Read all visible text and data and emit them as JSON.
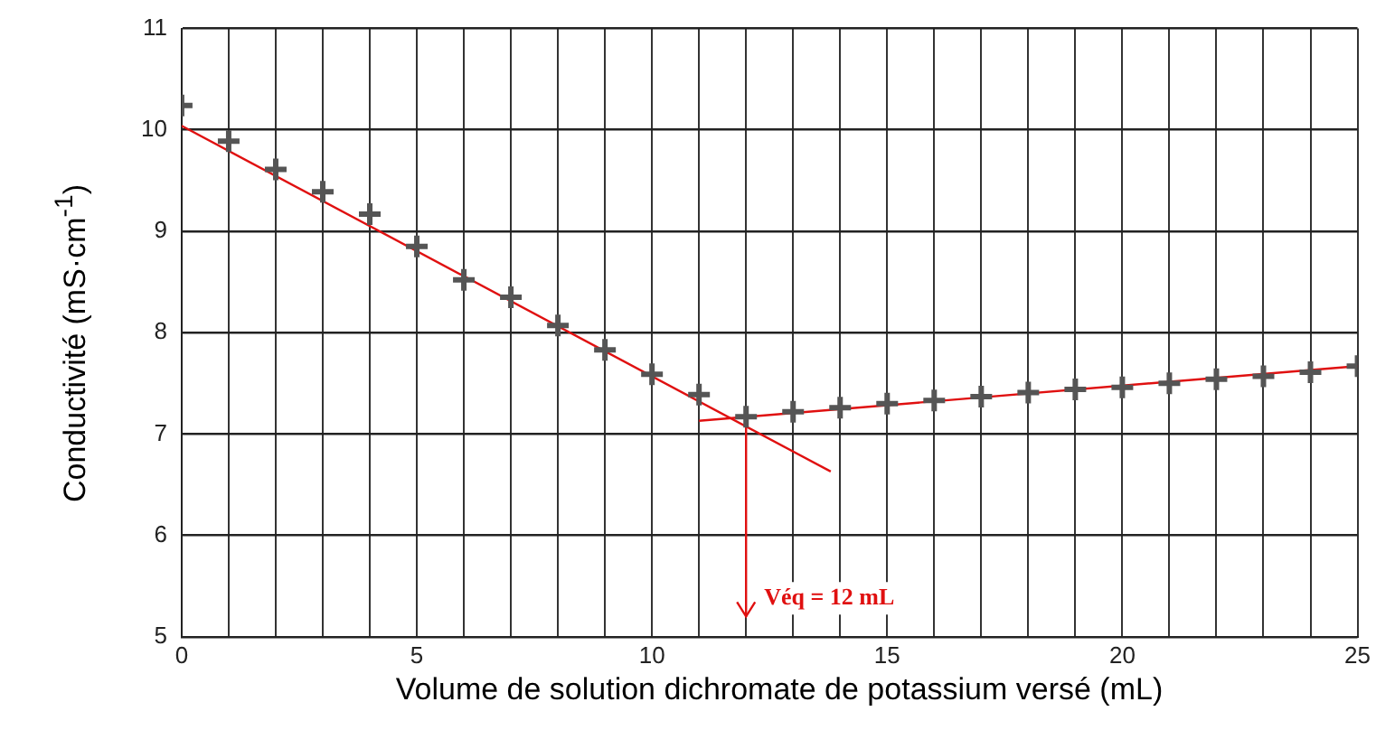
{
  "chart_data": {
    "type": "scatter",
    "xlabel": "Volume de solution dichromate de potassium versé (mL)",
    "ylabel": "Conductivité (mS·cm$^{-1}$)",
    "xlim": [
      0,
      25
    ],
    "ylim": [
      5,
      11
    ],
    "xticks": [
      0,
      {
        "value": 1,
        "label": null
      },
      {
        "value": 2,
        "label": null
      },
      {
        "value": 3,
        "label": null
      },
      {
        "value": 4,
        "label": null
      },
      5,
      {
        "value": 6,
        "label": null
      },
      {
        "value": 7,
        "label": null
      },
      {
        "value": 8,
        "label": null
      },
      {
        "value": 9,
        "label": null
      },
      10,
      {
        "value": 11,
        "label": null
      },
      {
        "value": 12,
        "label": null
      },
      {
        "value": 13,
        "label": null
      },
      {
        "value": 14,
        "label": null
      },
      15,
      {
        "value": 16,
        "label": null
      },
      {
        "value": 17,
        "label": null
      },
      {
        "value": 18,
        "label": null
      },
      {
        "value": 19,
        "label": null
      },
      20,
      {
        "value": 21,
        "label": null
      },
      {
        "value": 22,
        "label": null
      },
      {
        "value": 23,
        "label": null
      },
      {
        "value": 24,
        "label": null
      },
      25
    ],
    "yticks": [
      5,
      6,
      7,
      8,
      9,
      10,
      11
    ],
    "grid": true,
    "legend": false,
    "marker": "cross",
    "series": [
      {
        "color": "#555555",
        "x": [
          0,
          1,
          2,
          3,
          4,
          5,
          6,
          7,
          8,
          9,
          10,
          11,
          12,
          13,
          14,
          15,
          16,
          17,
          18,
          19,
          20,
          21,
          22,
          23,
          24,
          25
        ],
        "values": [
          10.24,
          9.89,
          9.61,
          9.39,
          9.17,
          8.85,
          8.52,
          8.35,
          8.07,
          7.83,
          7.59,
          7.39,
          7.17,
          7.22,
          7.26,
          7.3,
          7.33,
          7.37,
          7.41,
          7.44,
          7.46,
          7.5,
          7.54,
          7.57,
          7.61,
          7.67
        ]
      },
      {
        "type": "line",
        "color": "#e01010",
        "marker": "none",
        "x": [
          0,
          13.8
        ],
        "values": [
          10.04,
          6.63
        ]
      },
      {
        "type": "line",
        "color": "#e01010",
        "marker": "none",
        "x": [
          11,
          25
        ],
        "values": [
          7.13,
          7.67
        ]
      },
      {
        "type": "line",
        "color": "#e01010",
        "marker": "none",
        "x": [
          12,
          12
        ],
        "values": [
          7.17,
          5.2
        ]
      }
    ],
    "annotations": [
      "Véq = 12 mL"
    ]
  }
}
